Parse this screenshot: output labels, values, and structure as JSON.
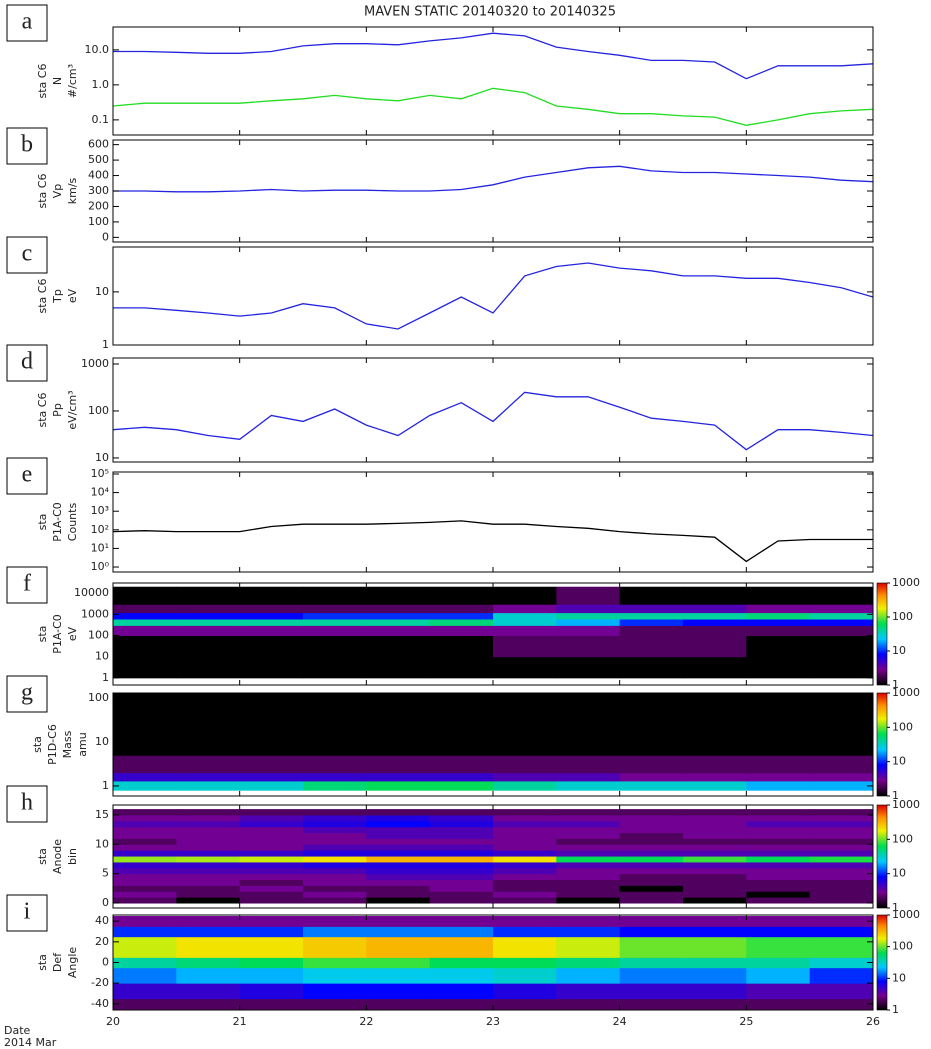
{
  "title": "MAVEN STATIC 20140320 to 20140325",
  "date_label": [
    "Date",
    "2014 Mar"
  ],
  "chart_data": [
    {
      "type": "line",
      "panel_label": "a",
      "ylabel": [
        "sta C6",
        "N",
        "#/cm³"
      ],
      "log": true,
      "ylim": [
        0.037,
        45
      ],
      "yticks": [
        0.1,
        {
          "value": 1,
          "label": "1.0"
        },
        {
          "value": 10,
          "label": "10.0"
        }
      ],
      "x": [
        20,
        20.25,
        20.5,
        20.75,
        21,
        21.25,
        21.5,
        21.75,
        22,
        22.25,
        22.5,
        22.75,
        23,
        23.25,
        23.5,
        23.75,
        24,
        24.25,
        24.5,
        24.75,
        25,
        25.25,
        25.5,
        25.75,
        26
      ],
      "series": [
        {
          "color": "#2424e0",
          "values": [
            9,
            9,
            8.5,
            8,
            8,
            9,
            13,
            15,
            15,
            14,
            18,
            22,
            30,
            25,
            12,
            9,
            7,
            5,
            5,
            4.5,
            1.5,
            3.5,
            3.5,
            3.5,
            4
          ]
        },
        {
          "color": "#22dd22",
          "values": [
            0.25,
            0.3,
            0.3,
            0.3,
            0.3,
            0.35,
            0.4,
            0.5,
            0.4,
            0.35,
            0.5,
            0.4,
            0.8,
            0.6,
            0.25,
            0.2,
            0.15,
            0.15,
            0.13,
            0.12,
            0.07,
            0.1,
            0.15,
            0.18,
            0.2
          ]
        }
      ]
    },
    {
      "type": "line",
      "panel_label": "b",
      "ylabel": [
        "sta C6",
        "Vp",
        "km/s"
      ],
      "log": false,
      "ylim": [
        -30,
        630
      ],
      "yticks": [
        0,
        100,
        200,
        300,
        400,
        500,
        600
      ],
      "x": [
        20,
        20.25,
        20.5,
        20.75,
        21,
        21.25,
        21.5,
        21.75,
        22,
        22.25,
        22.5,
        22.75,
        23,
        23.25,
        23.5,
        23.75,
        24,
        24.25,
        24.5,
        24.75,
        25,
        25.25,
        25.5,
        25.75,
        26
      ],
      "series": [
        {
          "color": "#2424e0",
          "values": [
            300,
            300,
            295,
            295,
            300,
            310,
            300,
            305,
            305,
            300,
            300,
            310,
            340,
            390,
            420,
            450,
            460,
            430,
            420,
            420,
            410,
            400,
            390,
            370,
            360
          ]
        }
      ]
    },
    {
      "type": "line",
      "panel_label": "c",
      "ylabel": [
        "sta C6",
        "Tp",
        "eV"
      ],
      "log": true,
      "ylim": [
        1,
        70
      ],
      "yticks": [
        1,
        10
      ],
      "x": [
        20,
        20.25,
        20.5,
        20.75,
        21,
        21.25,
        21.5,
        21.75,
        22,
        22.25,
        22.5,
        22.75,
        23,
        23.25,
        23.5,
        23.75,
        24,
        24.25,
        24.5,
        24.75,
        25,
        25.25,
        25.5,
        25.75,
        26
      ],
      "series": [
        {
          "color": "#2424e0",
          "values": [
            5,
            5,
            4.5,
            4,
            3.5,
            4,
            6,
            5,
            2.5,
            2,
            4,
            8,
            4,
            20,
            30,
            35,
            28,
            25,
            20,
            20,
            18,
            18,
            15,
            12,
            8
          ]
        }
      ]
    },
    {
      "type": "line",
      "panel_label": "d",
      "ylabel": [
        "sta C6",
        "Pp",
        "eV/cm³"
      ],
      "log": true,
      "ylim": [
        8.2,
        1340
      ],
      "yticks": [
        10,
        100,
        1000
      ],
      "x": [
        20,
        20.25,
        20.5,
        20.75,
        21,
        21.25,
        21.5,
        21.75,
        22,
        22.25,
        22.5,
        22.75,
        23,
        23.25,
        23.5,
        23.75,
        24,
        24.25,
        24.5,
        24.75,
        25,
        25.25,
        25.5,
        25.75,
        26
      ],
      "series": [
        {
          "color": "#2424e0",
          "values": [
            40,
            45,
            40,
            30,
            25,
            80,
            60,
            110,
            50,
            30,
            80,
            150,
            60,
            250,
            200,
            200,
            120,
            70,
            60,
            50,
            15,
            40,
            40,
            35,
            30
          ]
        }
      ]
    },
    {
      "type": "line",
      "panel_label": "e",
      "ylabel": [
        "sta",
        "P1A-C0",
        "Counts"
      ],
      "log": true,
      "ylim": [
        0.54,
        128000
      ],
      "yticks": [
        {
          "value": 1,
          "label": "10⁰"
        },
        {
          "value": 10,
          "label": "10¹"
        },
        {
          "value": 100,
          "label": "10²"
        },
        {
          "value": 1000,
          "label": "10³"
        },
        {
          "value": 10000,
          "label": "10⁴"
        },
        {
          "value": 100000,
          "label": "10⁵"
        }
      ],
      "x": [
        20,
        20.25,
        20.5,
        20.75,
        21,
        21.25,
        21.5,
        21.75,
        22,
        22.25,
        22.5,
        22.75,
        23,
        23.25,
        23.5,
        23.75,
        24,
        24.25,
        24.5,
        24.75,
        25,
        25.25,
        25.5,
        25.75,
        26
      ],
      "series": [
        {
          "color": "#000000",
          "values": [
            80,
            90,
            80,
            80,
            80,
            150,
            200,
            200,
            200,
            220,
            250,
            300,
            200,
            200,
            150,
            120,
            80,
            60,
            50,
            40,
            2,
            25,
            30,
            30,
            30
          ]
        }
      ]
    },
    {
      "type": "heatmap",
      "panel_label": "f",
      "ylabel": [
        "sta",
        "P1A-C0",
        "eV"
      ],
      "log": true,
      "ylim": [
        0.46,
        30000
      ],
      "yticks": [
        1,
        10,
        100,
        1000,
        10000
      ],
      "zlim": [
        1,
        1000
      ],
      "zticks": [
        1,
        10,
        100,
        1000
      ],
      "x_bins": [
        20,
        20.5,
        21,
        21.5,
        22,
        22.5,
        23,
        23.5,
        24,
        24.5,
        25,
        25.5,
        26
      ],
      "y_bins": [
        1,
        10,
        100,
        300,
        600,
        1200,
        3000,
        20000
      ],
      "z": [
        [
          1,
          1,
          1,
          1,
          1,
          1,
          1,
          1,
          1,
          1,
          1,
          1
        ],
        [
          1,
          1,
          1,
          1,
          1,
          1,
          2,
          2,
          2,
          2,
          1,
          1
        ],
        [
          3,
          3,
          3,
          3,
          3,
          3,
          3,
          3,
          2,
          2,
          2,
          2
        ],
        [
          40,
          40,
          40,
          40,
          40,
          50,
          30,
          20,
          10,
          8,
          8,
          8
        ],
        [
          8,
          8,
          8,
          10,
          10,
          10,
          30,
          40,
          40,
          40,
          50,
          40
        ],
        [
          2,
          2,
          2,
          2,
          2,
          2,
          3,
          4,
          4,
          4,
          3,
          3
        ],
        [
          1,
          1,
          1,
          1,
          1,
          1,
          1,
          2,
          1,
          1,
          1,
          1
        ]
      ]
    },
    {
      "type": "heatmap",
      "panel_label": "g",
      "ylabel": [
        "sta",
        "P1D-C6",
        "Mass",
        "amu"
      ],
      "log": true,
      "ylim": [
        0.59,
        130
      ],
      "yticks": [
        1,
        10,
        100
      ],
      "zlim": [
        1,
        1000
      ],
      "zticks": [
        1,
        10,
        100,
        1000
      ],
      "x_bins": [
        20,
        20.5,
        21,
        21.5,
        22,
        22.5,
        23,
        23.5,
        24,
        24.5,
        25,
        25.5,
        26
      ],
      "y_bins": [
        0.6,
        0.8,
        1.3,
        2,
        5,
        20,
        130
      ],
      "z": [
        [
          null,
          null,
          null,
          null,
          null,
          null,
          null,
          null,
          null,
          null,
          null,
          null
        ],
        [
          30,
          30,
          30,
          50,
          60,
          60,
          40,
          30,
          30,
          30,
          20,
          20
        ],
        [
          5,
          5,
          5,
          5,
          5,
          5,
          4,
          4,
          3,
          3,
          3,
          3
        ],
        [
          2,
          2,
          2,
          2,
          2,
          2,
          2,
          2,
          2,
          2,
          2,
          2
        ],
        [
          1,
          1,
          1,
          1,
          1,
          1,
          1,
          1,
          1,
          1,
          1,
          1
        ],
        [
          1,
          1,
          1,
          1,
          1,
          1,
          1,
          1,
          1,
          1,
          1,
          1
        ]
      ]
    },
    {
      "type": "heatmap",
      "panel_label": "h",
      "ylabel": [
        "sta",
        "Anode",
        "bin"
      ],
      "log": false,
      "ylim": [
        -0.85,
        16.7
      ],
      "yticks": [
        0,
        5,
        10,
        15
      ],
      "zlim": [
        1,
        1000
      ],
      "zticks": [
        1,
        10,
        100,
        1000
      ],
      "x_bins": [
        20,
        20.5,
        21,
        21.5,
        22,
        22.5,
        23,
        23.5,
        24,
        24.5,
        25,
        25.5,
        26
      ],
      "y_bins": [
        0,
        1,
        2,
        3,
        4,
        5,
        6,
        7,
        8,
        9,
        10,
        11,
        12,
        13,
        14,
        15,
        16
      ],
      "z": [
        [
          2,
          1,
          2,
          2,
          1,
          2,
          2,
          1,
          2,
          1,
          2,
          2
        ],
        [
          3,
          2,
          2,
          3,
          2,
          2,
          3,
          2,
          2,
          2,
          1,
          2
        ],
        [
          2,
          2,
          3,
          2,
          2,
          3,
          2,
          2,
          1,
          2,
          2,
          2
        ],
        [
          3,
          3,
          2,
          3,
          3,
          3,
          2,
          2,
          2,
          2,
          2,
          2
        ],
        [
          3,
          3,
          3,
          3,
          4,
          4,
          3,
          3,
          2,
          2,
          3,
          3
        ],
        [
          4,
          4,
          4,
          4,
          5,
          5,
          4,
          3,
          3,
          3,
          3,
          3
        ],
        [
          5,
          5,
          5,
          6,
          6,
          6,
          5,
          4,
          4,
          4,
          4,
          4
        ],
        [
          120,
          130,
          150,
          200,
          300,
          300,
          200,
          60,
          60,
          80,
          60,
          70
        ],
        [
          5,
          5,
          5,
          6,
          6,
          6,
          5,
          4,
          4,
          4,
          4,
          4
        ],
        [
          3,
          3,
          3,
          4,
          4,
          4,
          3,
          3,
          3,
          3,
          3,
          3
        ],
        [
          2,
          3,
          3,
          3,
          3,
          3,
          3,
          2,
          2,
          2,
          2,
          2
        ],
        [
          3,
          3,
          3,
          3,
          4,
          4,
          3,
          3,
          2,
          3,
          3,
          3
        ],
        [
          3,
          3,
          3,
          4,
          4,
          4,
          3,
          3,
          3,
          3,
          3,
          3
        ],
        [
          4,
          4,
          5,
          6,
          8,
          6,
          4,
          4,
          3,
          3,
          4,
          4
        ],
        [
          3,
          3,
          4,
          5,
          6,
          5,
          3,
          3,
          3,
          3,
          3,
          3
        ],
        [
          2,
          2,
          2,
          2,
          2,
          2,
          2,
          2,
          2,
          2,
          2,
          2
        ]
      ]
    },
    {
      "type": "heatmap",
      "panel_label": "i",
      "ylabel": [
        "sta",
        "Def",
        "Angle"
      ],
      "log": false,
      "ylim": [
        -46,
        46
      ],
      "yticks": [
        -40,
        -20,
        0,
        20,
        40
      ],
      "zlim": [
        1,
        1000
      ],
      "zticks": [
        1,
        10,
        100,
        1000
      ],
      "xlim": [
        20,
        26
      ],
      "xticks": [
        20,
        21,
        22,
        23,
        24,
        25,
        26
      ],
      "x_bins": [
        20,
        20.5,
        21,
        21.5,
        22,
        22.5,
        23,
        23.5,
        24,
        24.5,
        25,
        25.5,
        26
      ],
      "y_bins": [
        -45,
        -35,
        -20,
        -5,
        5,
        25,
        35,
        45
      ],
      "z": [
        [
          2,
          2,
          2,
          2,
          2,
          2,
          2,
          2,
          2,
          2,
          2,
          2
        ],
        [
          5,
          5,
          6,
          8,
          8,
          8,
          6,
          5,
          5,
          5,
          4,
          4
        ],
        [
          15,
          20,
          20,
          25,
          25,
          25,
          30,
          20,
          15,
          15,
          20,
          10
        ],
        [
          40,
          50,
          60,
          80,
          80,
          60,
          60,
          50,
          40,
          40,
          40,
          30
        ],
        [
          150,
          200,
          200,
          250,
          300,
          300,
          200,
          150,
          100,
          100,
          80,
          80
        ],
        [
          10,
          10,
          10,
          15,
          15,
          15,
          10,
          10,
          8,
          8,
          8,
          8
        ],
        [
          3,
          3,
          3,
          3,
          3,
          3,
          3,
          3,
          3,
          3,
          3,
          3
        ]
      ]
    }
  ]
}
